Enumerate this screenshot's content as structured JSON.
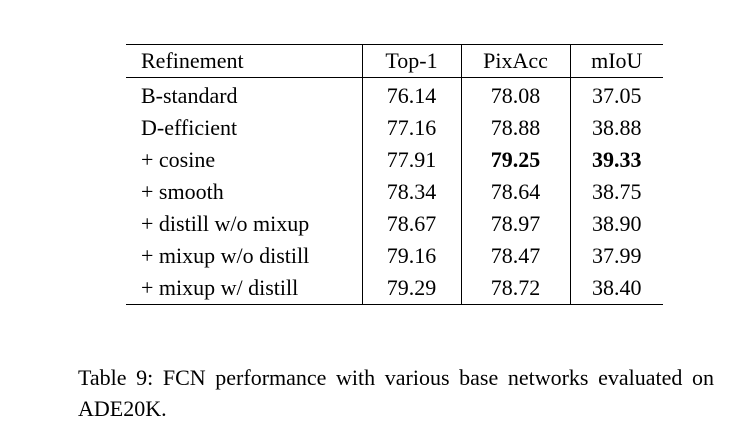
{
  "table": {
    "header": [
      "Refinement",
      "Top-1",
      "PixAcc",
      "mIoU"
    ],
    "rows": [
      [
        "B-standard",
        "76.14",
        "78.08",
        "37.05"
      ],
      [
        "D-efficient",
        "77.16",
        "78.88",
        "38.88"
      ],
      [
        "+ cosine",
        "77.91",
        "79.25",
        "39.33"
      ],
      [
        "+ smooth",
        "78.34",
        "78.64",
        "38.75"
      ],
      [
        "+ distill w/o mixup",
        "78.67",
        "78.97",
        "38.90"
      ],
      [
        "+ mixup w/o distill",
        "79.16",
        "78.47",
        "37.99"
      ],
      [
        "+ mixup w/ distill",
        "79.29",
        "78.72",
        "38.40"
      ]
    ]
  },
  "caption": "Table 9: FCN performance with various base networks evaluated on ADE20K."
}
